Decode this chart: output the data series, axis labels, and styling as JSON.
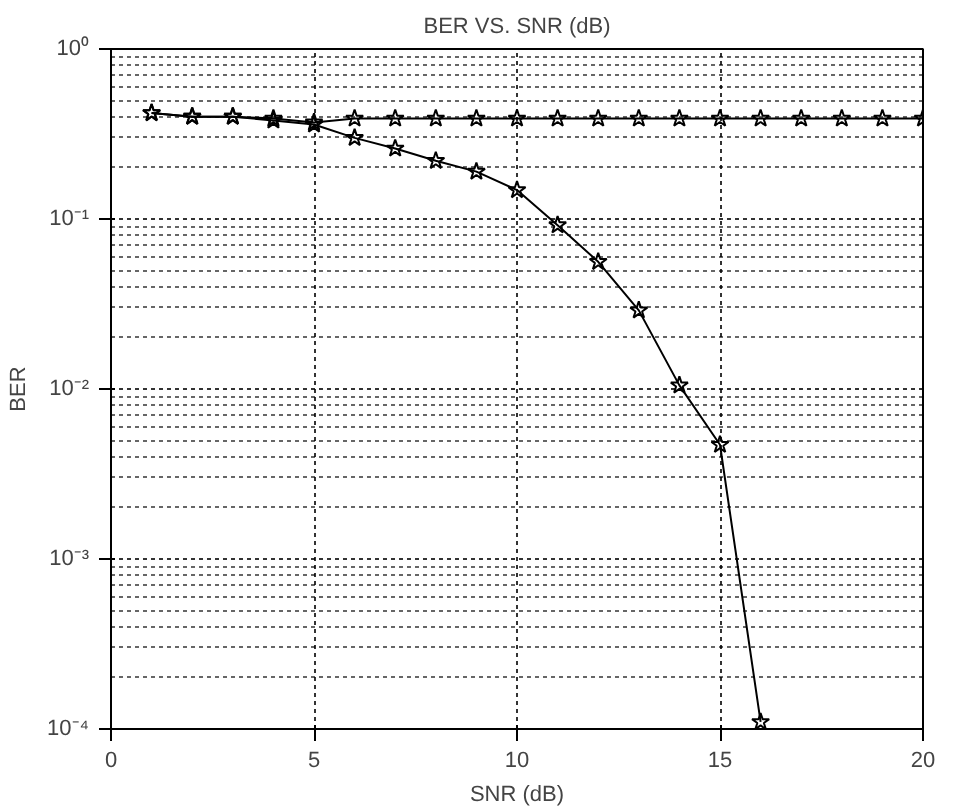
{
  "chart_data": {
    "type": "line",
    "title": "BER VS. SNR (dB)",
    "xlabel": "SNR (dB)",
    "ylabel": "BER",
    "log": "y",
    "grid": true,
    "marker": "star",
    "line_style": "solid",
    "xlim": [
      0,
      20
    ],
    "xticks": [
      0,
      5,
      10,
      15,
      20
    ],
    "ylim": [
      0.0001,
      1
    ],
    "yticks": [
      {
        "value": 0.0001,
        "label": "10⁻⁴"
      },
      {
        "value": 0.001,
        "label": "10⁻³"
      },
      {
        "value": 0.01,
        "label": "10⁻²"
      },
      {
        "value": 0.1,
        "label": "10⁻¹"
      },
      {
        "value": 1,
        "label": "10⁰"
      }
    ],
    "series": [
      {
        "color": "#000000",
        "x": [
          1,
          2,
          3,
          4,
          5,
          6,
          7,
          8,
          9,
          10,
          11,
          12,
          13,
          14,
          15,
          16,
          17,
          18,
          19,
          20
        ],
        "values": [
          0.42,
          0.4,
          0.4,
          0.39,
          0.37,
          0.39,
          0.39,
          0.39,
          0.39,
          0.39,
          0.39,
          0.39,
          0.39,
          0.39,
          0.39,
          0.39,
          0.39,
          0.39,
          0.39,
          0.39
        ]
      },
      {
        "color": "#000000",
        "x": [
          1,
          2,
          3,
          4,
          5,
          6,
          7,
          8,
          9,
          10,
          11,
          12,
          13,
          14,
          15,
          16
        ],
        "values": [
          0.42,
          0.4,
          0.4,
          0.38,
          0.36,
          0.3,
          0.26,
          0.22,
          0.19,
          0.148,
          0.092,
          0.056,
          0.029,
          0.0105,
          0.0047,
          0.00011
        ]
      }
    ]
  }
}
